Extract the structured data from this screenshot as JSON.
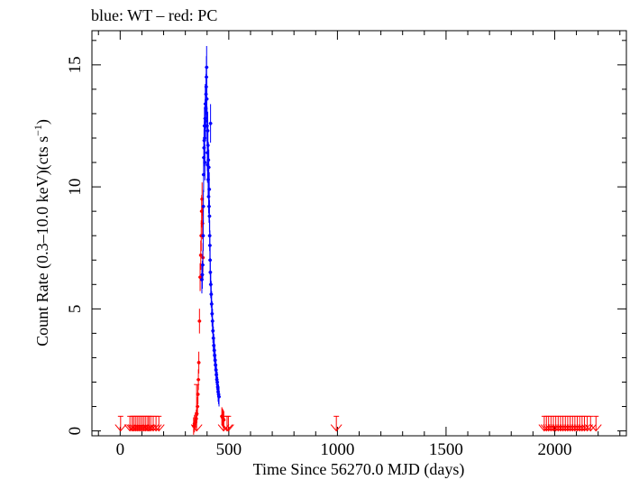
{
  "chart_data": {
    "type": "scatter",
    "title": "blue: WT – red: PC",
    "xlabel": "Time Since 56270.0 MJD (days)",
    "ylabel_main": "Count Rate (0.3–10.0 keV)(cts s",
    "ylabel_sup": "−1",
    "ylabel_close": ")",
    "xlim": [
      -130,
      2330
    ],
    "ylim": [
      -0.2,
      16.4
    ],
    "xticks": [
      0,
      500,
      1000,
      1500,
      2000
    ],
    "xtick_labels": [
      "0",
      "500",
      "1000",
      "1500",
      "2000"
    ],
    "yticks": [
      0,
      5,
      10,
      15
    ],
    "ytick_labels": [
      "0",
      "5",
      "10",
      "15"
    ],
    "colors": {
      "WT": "#0000ff",
      "PC": "#ff0000",
      "axis": "#000000"
    },
    "series": [
      {
        "name": "WT",
        "color": "#0000ff",
        "points": [
          [
            376,
            6.2
          ],
          [
            378,
            6.4
          ],
          [
            380,
            6.8
          ],
          [
            382,
            8.0
          ],
          [
            383,
            9.2
          ],
          [
            384,
            10.5
          ],
          [
            385,
            11.2
          ],
          [
            386,
            11.6
          ],
          [
            387,
            11.9
          ],
          [
            388,
            12.5
          ],
          [
            389,
            12.0
          ],
          [
            390,
            11.0
          ],
          [
            391,
            12.8
          ],
          [
            392,
            13.4
          ],
          [
            393,
            12.7
          ],
          [
            394,
            13.2
          ],
          [
            395,
            13.8
          ],
          [
            396,
            14.1
          ],
          [
            397,
            14.5
          ],
          [
            398,
            14.9
          ],
          [
            399,
            13.6
          ],
          [
            400,
            12.5
          ],
          [
            401,
            11.4
          ],
          [
            402,
            10.9
          ],
          [
            403,
            12.3
          ],
          [
            404,
            11.7
          ],
          [
            405,
            10.3
          ],
          [
            406,
            11.1
          ],
          [
            407,
            9.6
          ],
          [
            408,
            10.8
          ],
          [
            409,
            9.2
          ],
          [
            410,
            9.9
          ],
          [
            411,
            8.8
          ],
          [
            412,
            8.0
          ],
          [
            413,
            7.6
          ],
          [
            414,
            7.0
          ],
          [
            415,
            6.5
          ],
          [
            417,
            6.0
          ],
          [
            419,
            5.6
          ],
          [
            421,
            5.2
          ],
          [
            423,
            4.8
          ],
          [
            425,
            4.5
          ],
          [
            427,
            4.1
          ],
          [
            429,
            3.8
          ],
          [
            431,
            3.5
          ],
          [
            433,
            3.3
          ],
          [
            435,
            3.1
          ],
          [
            437,
            2.9
          ],
          [
            439,
            2.7
          ],
          [
            441,
            2.5
          ],
          [
            443,
            2.3
          ],
          [
            445,
            2.1
          ],
          [
            447,
            2.0
          ],
          [
            449,
            1.8
          ],
          [
            451,
            1.6
          ],
          [
            453,
            1.5
          ],
          [
            455,
            1.4
          ],
          [
            416,
            12.6
          ]
        ]
      },
      {
        "name": "PC",
        "color": "#ff0000",
        "points": [
          [
            338,
            0.2
          ],
          [
            342,
            0.3
          ],
          [
            346,
            0.4
          ],
          [
            350,
            0.5
          ],
          [
            353,
            0.7
          ],
          [
            356,
            1.0
          ],
          [
            358,
            1.5
          ],
          [
            360,
            2.1
          ],
          [
            362,
            2.8
          ],
          [
            365,
            4.5
          ],
          [
            368,
            6.3
          ],
          [
            371,
            7.2
          ],
          [
            373,
            8.0
          ],
          [
            375,
            9.0
          ],
          [
            377,
            9.5
          ],
          [
            379,
            8.5
          ],
          [
            381,
            7.1
          ],
          [
            468,
            0.6
          ],
          [
            471,
            0.55
          ],
          [
            474,
            0.5
          ],
          [
            477,
            0.45
          ]
        ]
      }
    ],
    "upper_limits_PC": [
      {
        "x": 2,
        "y": 0.6
      },
      {
        "x": 45,
        "y": 0.6
      },
      {
        "x": 55,
        "y": 0.6
      },
      {
        "x": 62,
        "y": 0.6
      },
      {
        "x": 70,
        "y": 0.6
      },
      {
        "x": 78,
        "y": 0.6
      },
      {
        "x": 86,
        "y": 0.6
      },
      {
        "x": 94,
        "y": 0.6
      },
      {
        "x": 102,
        "y": 0.6
      },
      {
        "x": 110,
        "y": 0.6
      },
      {
        "x": 118,
        "y": 0.6
      },
      {
        "x": 127,
        "y": 0.6
      },
      {
        "x": 133,
        "y": 0.6
      },
      {
        "x": 141,
        "y": 0.6
      },
      {
        "x": 152,
        "y": 0.6
      },
      {
        "x": 165,
        "y": 0.6
      },
      {
        "x": 178,
        "y": 0.6
      },
      {
        "x": 352,
        "y": 1.9
      },
      {
        "x": 476,
        "y": 0.6
      },
      {
        "x": 492,
        "y": 0.6
      },
      {
        "x": 498,
        "y": 0.6
      },
      {
        "x": 995,
        "y": 0.6
      },
      {
        "x": 1952,
        "y": 0.6
      },
      {
        "x": 1962,
        "y": 0.6
      },
      {
        "x": 1972,
        "y": 0.6
      },
      {
        "x": 1983,
        "y": 0.6
      },
      {
        "x": 1994,
        "y": 0.6
      },
      {
        "x": 2005,
        "y": 0.6
      },
      {
        "x": 2016,
        "y": 0.6
      },
      {
        "x": 2027,
        "y": 0.6
      },
      {
        "x": 2038,
        "y": 0.6
      },
      {
        "x": 2049,
        "y": 0.6
      },
      {
        "x": 2060,
        "y": 0.6
      },
      {
        "x": 2071,
        "y": 0.6
      },
      {
        "x": 2082,
        "y": 0.6
      },
      {
        "x": 2093,
        "y": 0.6
      },
      {
        "x": 2104,
        "y": 0.6
      },
      {
        "x": 2115,
        "y": 0.6
      },
      {
        "x": 2126,
        "y": 0.6
      },
      {
        "x": 2137,
        "y": 0.6
      },
      {
        "x": 2150,
        "y": 0.6
      },
      {
        "x": 2165,
        "y": 0.6
      },
      {
        "x": 2190,
        "y": 0.6
      }
    ],
    "upper_limit_low_end_y": 0.0,
    "grid": false,
    "legend": "top-left"
  }
}
